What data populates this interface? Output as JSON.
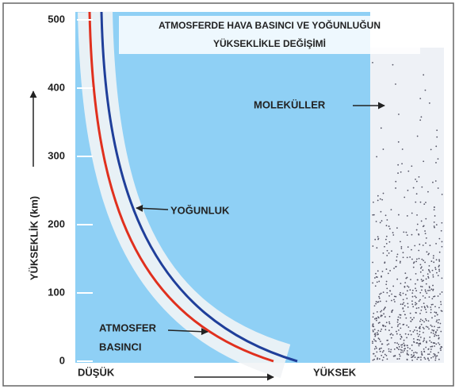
{
  "title": [
    "ATMOSFERDE HAVA BASINCI VE YOĞUNLUĞUN",
    "YÜKSEKLİKLE DEĞİŞİMİ"
  ],
  "axis": {
    "label": "YÜKSEKLİK (km)",
    "ticks": [
      0,
      100,
      200,
      300,
      400,
      500
    ]
  },
  "labels": {
    "molecules": "MOLEKÜLLER",
    "density": "YOĞUNLUK",
    "pressure": [
      "ATMOSFER",
      "BASINCI"
    ],
    "low": "DÜŞÜK",
    "high": "YÜKSEK"
  }
}
